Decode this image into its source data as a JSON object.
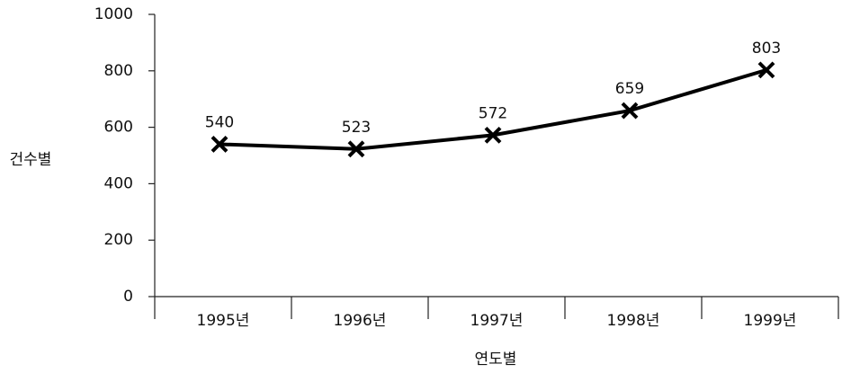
{
  "chart_data": {
    "type": "line",
    "categories": [
      "1995년",
      "1996년",
      "1997년",
      "1998년",
      "1999년"
    ],
    "values": [
      540,
      523,
      572,
      659,
      803
    ],
    "color": "#000000",
    "xlabel": "연도별",
    "ylabel": "건수별",
    "ylim": [
      0,
      1000
    ],
    "yticks": [
      0,
      200,
      400,
      600,
      800,
      1000
    ]
  }
}
